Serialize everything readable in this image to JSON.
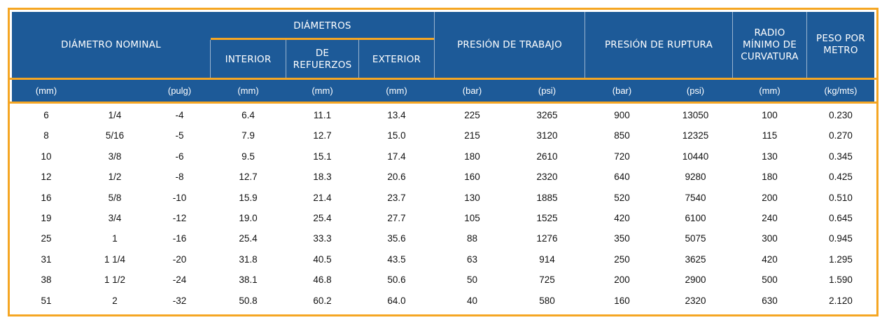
{
  "header": {
    "nominal": "DIÁMETRO NOMINAL",
    "diametros": "DIÁMETROS",
    "interior": "INTERIOR",
    "refuerzos_1": "DE",
    "refuerzos_2": "REFUERZOS",
    "exterior": "EXTERIOR",
    "trabajo": "PRESIÓN DE TRABAJO",
    "ruptura": "PRESIÓN DE RUPTURA",
    "radio_1": "RADIO",
    "radio_2": "MÍNIMO DE",
    "radio_3": "CURVATURA",
    "peso_1": "PESO POR",
    "peso_2": "METRO"
  },
  "units": [
    "(mm)",
    "",
    "(pulg)",
    "(mm)",
    "(mm)",
    "(mm)",
    "(bar)",
    "(psi)",
    "(bar)",
    "(psi)",
    "(mm)",
    "(kg/mts)"
  ],
  "rows": [
    [
      "6",
      "1/4",
      "-4",
      "6.4",
      "11.1",
      "13.4",
      "225",
      "3265",
      "900",
      "13050",
      "100",
      "0.230"
    ],
    [
      "8",
      "5/16",
      "-5",
      "7.9",
      "12.7",
      "15.0",
      "215",
      "3120",
      "850",
      "12325",
      "115",
      "0.270"
    ],
    [
      "10",
      "3/8",
      "-6",
      "9.5",
      "15.1",
      "17.4",
      "180",
      "2610",
      "720",
      "10440",
      "130",
      "0.345"
    ],
    [
      "12",
      "1/2",
      "-8",
      "12.7",
      "18.3",
      "20.6",
      "160",
      "2320",
      "640",
      "9280",
      "180",
      "0.425"
    ],
    [
      "16",
      "5/8",
      "-10",
      "15.9",
      "21.4",
      "23.7",
      "130",
      "1885",
      "520",
      "7540",
      "200",
      "0.510"
    ],
    [
      "19",
      "3/4",
      "-12",
      "19.0",
      "25.4",
      "27.7",
      "105",
      "1525",
      "420",
      "6100",
      "240",
      "0.645"
    ],
    [
      "25",
      "1",
      "-16",
      "25.4",
      "33.3",
      "35.6",
      "88",
      "1276",
      "350",
      "5075",
      "300",
      "0.945"
    ],
    [
      "31",
      "1 1/4",
      "-20",
      "31.8",
      "40.5",
      "43.5",
      "63",
      "914",
      "250",
      "3625",
      "420",
      "1.295"
    ],
    [
      "38",
      "1 1/2",
      "-24",
      "38.1",
      "46.8",
      "50.6",
      "50",
      "725",
      "200",
      "2900",
      "500",
      "1.590"
    ],
    [
      "51",
      "2",
      "-32",
      "50.8",
      "60.2",
      "64.0",
      "40",
      "580",
      "160",
      "2320",
      "630",
      "2.120"
    ]
  ],
  "colors": {
    "header_bg": "#1d5a98",
    "accent": "#f5a623"
  }
}
